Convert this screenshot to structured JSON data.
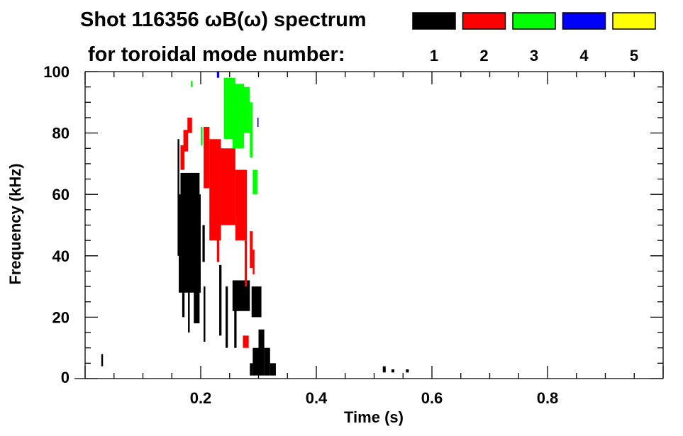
{
  "chart_data": {
    "type": "heatmap",
    "title": "Shot 116356 ωB(ω) spectrum",
    "subtitle": "for toroidal mode number:",
    "xlabel": "Time (s)",
    "ylabel": "Frequency (kHz)",
    "xlim": [
      0,
      1.0
    ],
    "ylim": [
      0,
      100
    ],
    "x_ticks": [
      0.2,
      0.4,
      0.6,
      0.8
    ],
    "x_tick_labels": [
      "0.2",
      "0.4",
      "0.6",
      "0.8"
    ],
    "y_ticks": [
      0,
      20,
      40,
      60,
      80,
      100
    ],
    "y_tick_labels": [
      "0",
      "20",
      "40",
      "60",
      "80",
      "100"
    ],
    "x_minor_step": 0.05,
    "y_minor_step": 5,
    "grid": false,
    "legend_position": "top-right",
    "legend": [
      {
        "mode": "1",
        "color": "#000000"
      },
      {
        "mode": "2",
        "color": "#ff0000"
      },
      {
        "mode": "3",
        "color": "#00ff00"
      },
      {
        "mode": "4",
        "color": "#0000ff"
      },
      {
        "mode": "5",
        "color": "#ffff00"
      }
    ],
    "patches_fields": [
      "mode",
      "t_start_s",
      "t_end_s",
      "f_low_kHz",
      "f_high_kHz"
    ],
    "patches": [
      [
        1,
        0.16,
        0.163,
        40,
        78
      ],
      [
        1,
        0.162,
        0.2,
        28,
        60
      ],
      [
        1,
        0.165,
        0.198,
        42,
        67
      ],
      [
        1,
        0.168,
        0.172,
        20,
        40
      ],
      [
        1,
        0.178,
        0.181,
        15,
        40
      ],
      [
        1,
        0.188,
        0.198,
        18,
        45
      ],
      [
        1,
        0.203,
        0.207,
        38,
        50
      ],
      [
        1,
        0.205,
        0.208,
        12,
        30
      ],
      [
        1,
        0.232,
        0.236,
        14,
        37
      ],
      [
        1,
        0.243,
        0.247,
        10,
        30
      ],
      [
        1,
        0.258,
        0.262,
        10,
        30
      ],
      [
        1,
        0.255,
        0.285,
        22,
        32
      ],
      [
        1,
        0.288,
        0.305,
        20,
        30
      ],
      [
        1,
        0.285,
        0.29,
        1,
        5
      ],
      [
        1,
        0.29,
        0.3,
        1,
        10
      ],
      [
        1,
        0.3,
        0.31,
        1,
        16
      ],
      [
        1,
        0.31,
        0.32,
        1,
        10
      ],
      [
        1,
        0.32,
        0.33,
        1,
        5
      ],
      [
        1,
        0.028,
        0.031,
        4,
        8
      ],
      [
        1,
        0.515,
        0.52,
        2,
        4
      ],
      [
        1,
        0.53,
        0.535,
        2,
        3
      ],
      [
        1,
        0.555,
        0.56,
        2,
        3
      ],
      [
        2,
        0.165,
        0.172,
        68,
        76
      ],
      [
        2,
        0.17,
        0.178,
        74,
        81
      ],
      [
        2,
        0.177,
        0.185,
        80,
        85
      ],
      [
        2,
        0.205,
        0.215,
        62,
        82
      ],
      [
        2,
        0.215,
        0.235,
        45,
        78
      ],
      [
        2,
        0.235,
        0.26,
        50,
        75
      ],
      [
        2,
        0.26,
        0.28,
        45,
        68
      ],
      [
        2,
        0.228,
        0.232,
        38,
        48
      ],
      [
        2,
        0.276,
        0.28,
        30,
        45
      ],
      [
        2,
        0.285,
        0.29,
        36,
        48
      ],
      [
        2,
        0.29,
        0.293,
        34,
        42
      ],
      [
        2,
        0.273,
        0.283,
        10,
        14
      ],
      [
        3,
        0.24,
        0.26,
        78,
        98
      ],
      [
        3,
        0.255,
        0.275,
        75,
        96
      ],
      [
        3,
        0.265,
        0.285,
        80,
        95
      ],
      [
        3,
        0.285,
        0.29,
        72,
        90
      ],
      [
        3,
        0.29,
        0.298,
        60,
        68
      ],
      [
        3,
        0.2,
        0.203,
        76,
        82
      ],
      [
        3,
        0.183,
        0.186,
        95,
        97
      ],
      [
        4,
        0.228,
        0.232,
        98,
        100
      ],
      [
        4,
        0.298,
        0.3,
        82,
        85
      ]
    ]
  }
}
